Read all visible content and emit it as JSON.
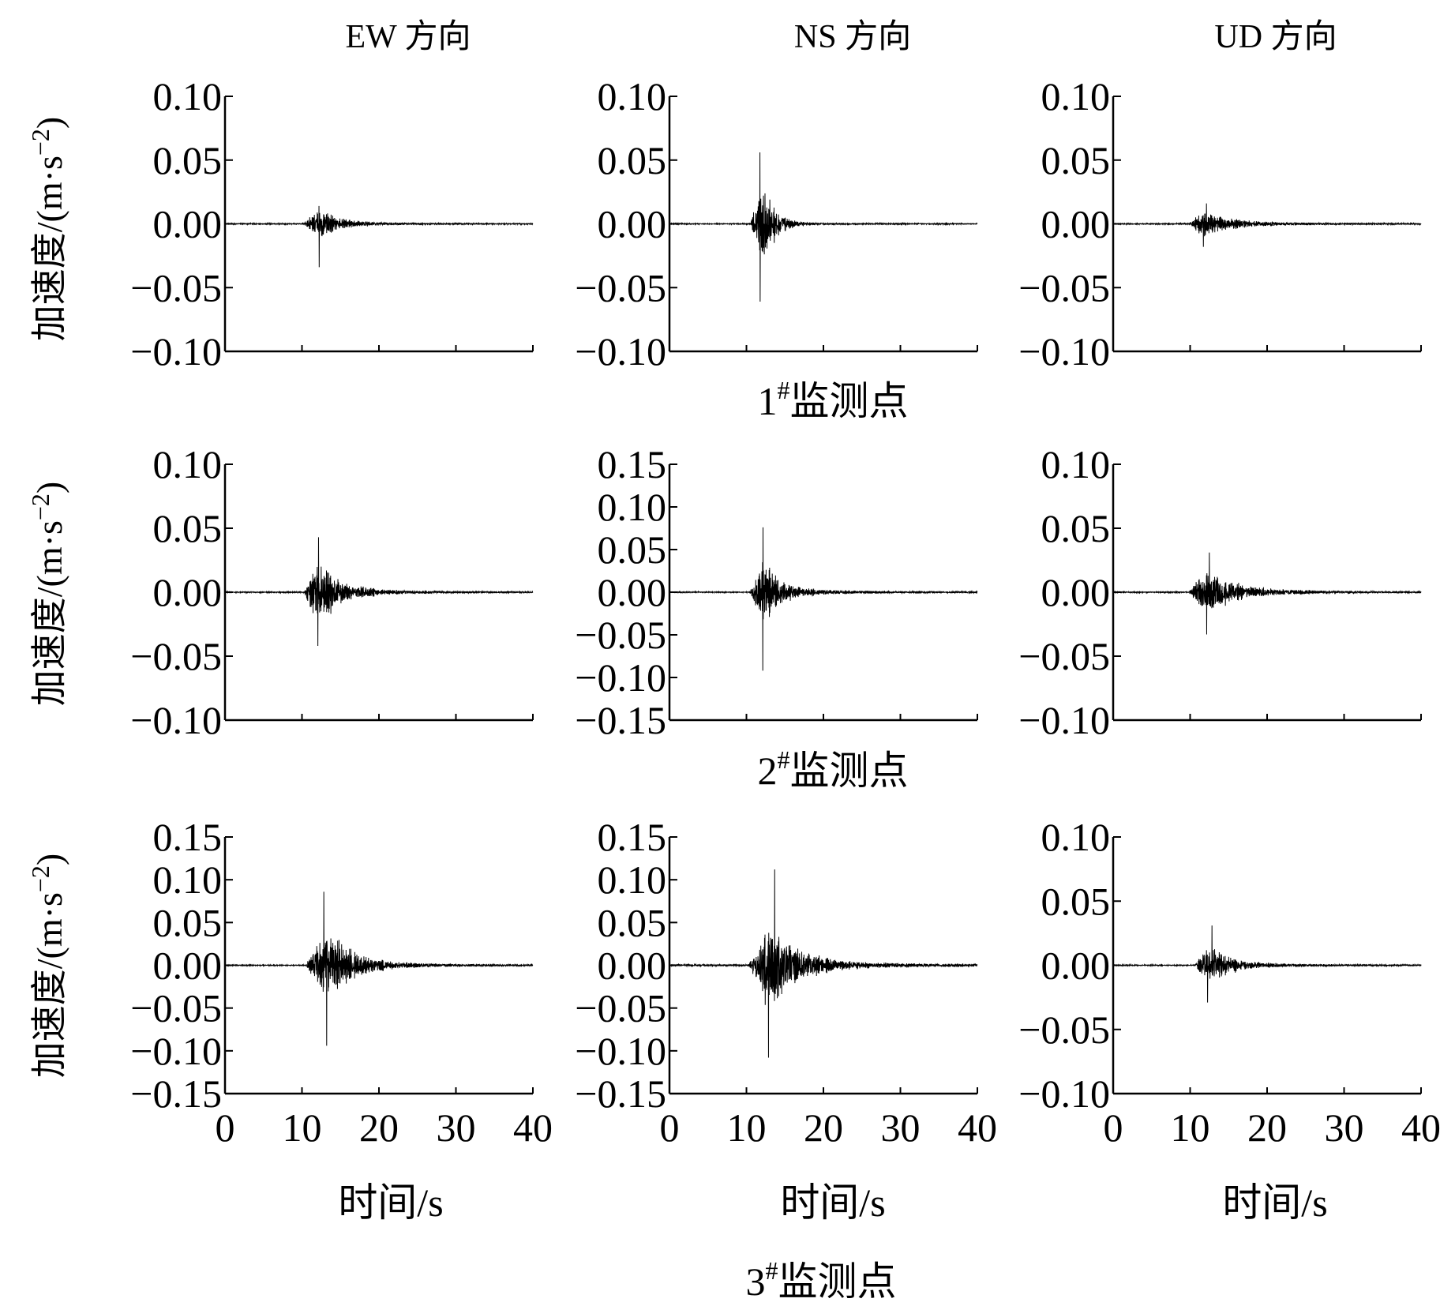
{
  "column_titles": [
    "EW 方向",
    "NS 方向",
    "UD 方向"
  ],
  "row_labels": [
    "1",
    "2",
    "3"
  ],
  "row_label_sup": "#",
  "row_label_suffix": "监测点",
  "y_axis_title": "加速度/(m·s",
  "y_axis_title_sup": "−2",
  "y_axis_title_end": ")",
  "x_axis_title": "时间/s",
  "chart_data": [
    {
      "type": "line",
      "row": 1,
      "column": "EW 方向",
      "xlim": [
        0,
        40
      ],
      "ylim": [
        -0.1,
        0.1
      ],
      "x_ticks": [],
      "y_tick_labels": [
        "0.10",
        "0.05",
        "0.00",
        "−0.05",
        "−0.10"
      ],
      "series": [
        {
          "seed": 11,
          "pre": 0.0006,
          "onset": 10.2,
          "peak_t": 12.4,
          "peak_amp": 0.016,
          "max": 0.014,
          "min": -0.034,
          "decay": 0.45,
          "tail": 0.0012
        }
      ]
    },
    {
      "type": "line",
      "row": 1,
      "column": "NS 方向",
      "xlim": [
        0,
        40
      ],
      "ylim": [
        -0.1,
        0.1
      ],
      "x_ticks": [],
      "y_tick_labels": [
        "0.10",
        "0.05",
        "0.00",
        "−0.05",
        "−0.10"
      ],
      "series": [
        {
          "seed": 12,
          "pre": 0.0006,
          "onset": 10.5,
          "peak_t": 12.2,
          "peak_amp": 0.045,
          "max": 0.056,
          "min": -0.061,
          "decay": 0.7,
          "tail": 0.0008
        }
      ]
    },
    {
      "type": "line",
      "row": 1,
      "column": "UD 方向",
      "xlim": [
        0,
        40
      ],
      "ylim": [
        -0.1,
        0.1
      ],
      "x_ticks": [],
      "y_tick_labels": [
        "0.10",
        "0.05",
        "0.00",
        "−0.05",
        "−0.10"
      ],
      "series": [
        {
          "seed": 13,
          "pre": 0.0006,
          "onset": 9.8,
          "peak_t": 11.8,
          "peak_amp": 0.011,
          "max": 0.016,
          "min": -0.018,
          "decay": 0.3,
          "tail": 0.0018
        }
      ]
    },
    {
      "type": "line",
      "row": 2,
      "column": "EW 方向",
      "xlim": [
        0,
        40
      ],
      "ylim": [
        -0.1,
        0.1
      ],
      "x_ticks": [],
      "y_tick_labels": [
        "0.10",
        "0.05",
        "0.00",
        "−0.05",
        "−0.10"
      ],
      "series": [
        {
          "seed": 21,
          "pre": 0.0006,
          "onset": 10.3,
          "peak_t": 12.0,
          "peak_amp": 0.034,
          "max": 0.043,
          "min": -0.042,
          "decay": 0.4,
          "tail": 0.0025
        }
      ]
    },
    {
      "type": "line",
      "row": 2,
      "column": "NS 方向",
      "xlim": [
        0,
        40
      ],
      "ylim": [
        -0.15,
        0.15
      ],
      "x_ticks": [],
      "y_tick_labels": [
        "0.15",
        "0.10",
        "0.05",
        "0.00",
        "−0.05",
        "−0.10",
        "−0.15"
      ],
      "series": [
        {
          "seed": 22,
          "pre": 0.0008,
          "onset": 10.4,
          "peak_t": 12.0,
          "peak_amp": 0.045,
          "max": 0.076,
          "min": -0.092,
          "decay": 0.45,
          "tail": 0.004
        }
      ]
    },
    {
      "type": "line",
      "row": 2,
      "column": "UD 方向",
      "xlim": [
        0,
        40
      ],
      "ylim": [
        -0.1,
        0.1
      ],
      "x_ticks": [],
      "y_tick_labels": [
        "0.10",
        "0.05",
        "0.00",
        "−0.05",
        "−0.10"
      ],
      "series": [
        {
          "seed": 23,
          "pre": 0.0006,
          "onset": 9.8,
          "peak_t": 12.2,
          "peak_amp": 0.02,
          "max": 0.031,
          "min": -0.033,
          "decay": 0.3,
          "tail": 0.003
        }
      ]
    },
    {
      "type": "line",
      "row": 3,
      "column": "EW 方向",
      "xlim": [
        0,
        40
      ],
      "ylim": [
        -0.15,
        0.15
      ],
      "x_ticks": [
        "0",
        "10",
        "20",
        "30",
        "40"
      ],
      "y_tick_labels": [
        "0.15",
        "0.10",
        "0.05",
        "0.00",
        "−0.05",
        "−0.10",
        "−0.15"
      ],
      "series": [
        {
          "seed": 31,
          "pre": 0.0008,
          "onset": 10.5,
          "peak_t": 13.2,
          "peak_amp": 0.055,
          "max": 0.086,
          "min": -0.094,
          "decay": 0.35,
          "tail": 0.005
        }
      ]
    },
    {
      "type": "line",
      "row": 3,
      "column": "NS 方向",
      "xlim": [
        0,
        40
      ],
      "ylim": [
        -0.15,
        0.15
      ],
      "x_ticks": [
        "0",
        "10",
        "20",
        "30",
        "40"
      ],
      "y_tick_labels": [
        "0.15",
        "0.10",
        "0.05",
        "0.00",
        "−0.05",
        "−0.10",
        "−0.15"
      ],
      "series": [
        {
          "seed": 32,
          "pre": 0.0015,
          "onset": 10.3,
          "peak_t": 13.0,
          "peak_amp": 0.06,
          "max": 0.112,
          "min": -0.108,
          "decay": 0.3,
          "tail": 0.006
        }
      ]
    },
    {
      "type": "line",
      "row": 3,
      "column": "UD 方向",
      "xlim": [
        0,
        40
      ],
      "ylim": [
        -0.1,
        0.1
      ],
      "x_ticks": [
        "0",
        "10",
        "20",
        "30",
        "40"
      ],
      "y_tick_labels": [
        "0.10",
        "0.05",
        "0.00",
        "−0.05",
        "−0.10"
      ],
      "series": [
        {
          "seed": 33,
          "pre": 0.0006,
          "onset": 10.6,
          "peak_t": 12.5,
          "peak_amp": 0.02,
          "max": 0.031,
          "min": -0.029,
          "decay": 0.4,
          "tail": 0.002
        }
      ]
    }
  ]
}
